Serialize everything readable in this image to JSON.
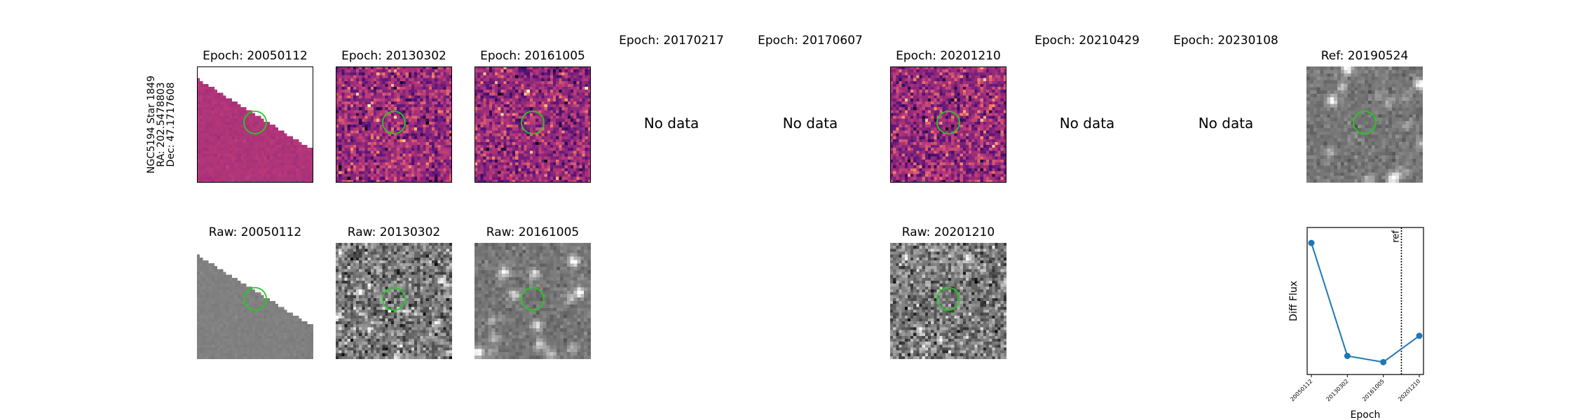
{
  "target": {
    "name": "NGC5194 Star 1849",
    "ra": "RA: 202.5478803",
    "dec": "Dec: 47.1717608"
  },
  "top_row": [
    {
      "title": "Epoch: 20050112",
      "has_data": true,
      "style": "diff-edge"
    },
    {
      "title": "Epoch: 20130302",
      "has_data": true,
      "style": "diff"
    },
    {
      "title": "Epoch: 20161005",
      "has_data": true,
      "style": "diff"
    },
    {
      "title": "Epoch: 20170217",
      "has_data": false,
      "message": "No data"
    },
    {
      "title": "Epoch: 20170607",
      "has_data": false,
      "message": "No data"
    },
    {
      "title": "Epoch: 20201210",
      "has_data": true,
      "style": "diff"
    },
    {
      "title": "Epoch: 20210429",
      "has_data": false,
      "message": "No data"
    },
    {
      "title": "Epoch: 20230108",
      "has_data": false,
      "message": "No data"
    },
    {
      "title": "Ref: 20190524",
      "has_data": true,
      "style": "ref"
    }
  ],
  "bottom_row": [
    {
      "title": "Raw: 20050112",
      "style": "raw-edge"
    },
    {
      "title": "Raw: 20130302",
      "style": "raw"
    },
    {
      "title": "Raw: 20161005",
      "style": "raw-smooth"
    },
    {
      "title": "Raw: 20201210",
      "style": "raw"
    }
  ],
  "colors": {
    "circle": "#22cc22",
    "series": "#1f77b4",
    "magma_low": "#2c115f",
    "magma_mid": "#b63679",
    "magma_high": "#fcfdbf"
  },
  "chart_data": {
    "type": "line",
    "x": [
      "20050112",
      "20130302",
      "20161005",
      "20201210"
    ],
    "series": [
      {
        "values": [
          0.9,
          0.17,
          0.13,
          0.3
        ]
      }
    ],
    "xlabel": "Epoch",
    "ylabel": "Diff Flux",
    "ylim": [
      0.05,
      1.0
    ],
    "reference_line": {
      "label": "ref",
      "x_fraction": 0.81,
      "style": "dotted"
    },
    "grid": false
  }
}
